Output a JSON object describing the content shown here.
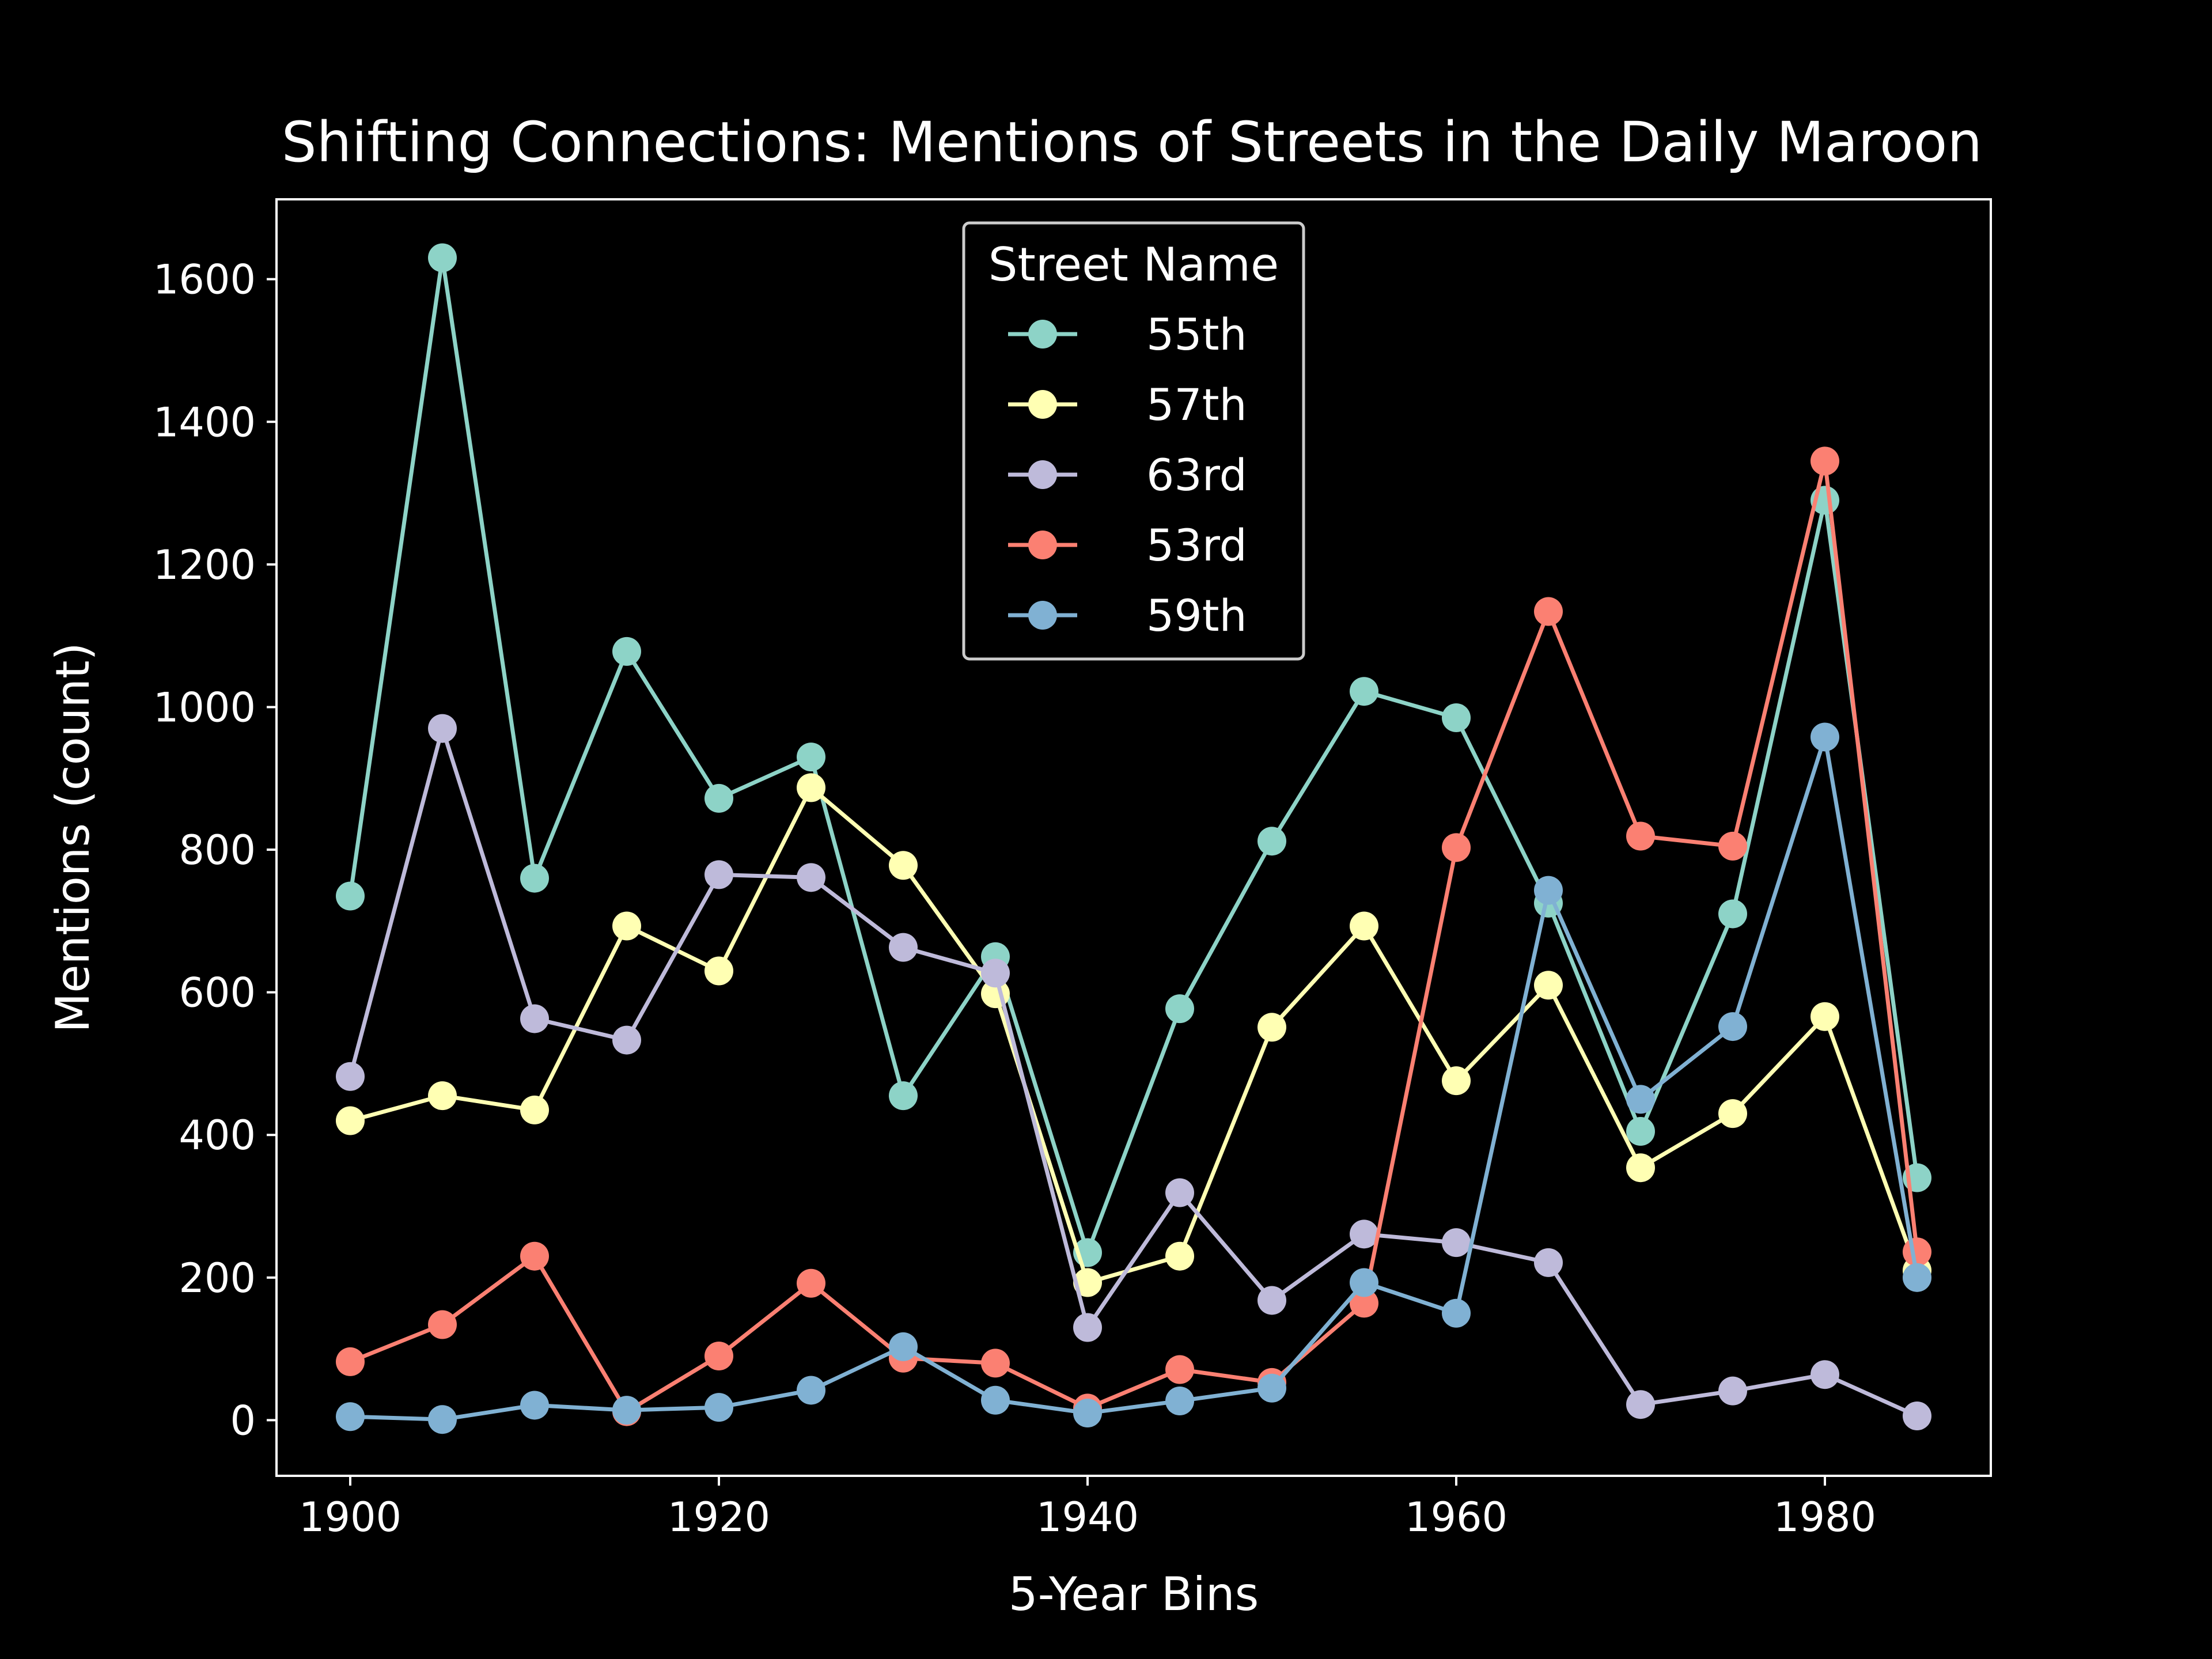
{
  "chart_data": {
    "type": "line",
    "title": "Shifting Connections: Mentions of Streets in the Daily Maroon",
    "xlabel": "5-Year Bins",
    "ylabel": "Mentions (count)",
    "xlim": [
      1896,
      1989
    ],
    "ylim": [
      -78,
      1712
    ],
    "xticks": [
      1900,
      1920,
      1940,
      1960,
      1980
    ],
    "yticks": [
      0,
      200,
      400,
      600,
      800,
      1000,
      1200,
      1400,
      1600
    ],
    "grid": false,
    "legend": {
      "title": "Street Name",
      "placement": "top-center"
    },
    "x": [
      1900,
      1905,
      1910,
      1915,
      1920,
      1925,
      1930,
      1935,
      1940,
      1945,
      1950,
      1955,
      1960,
      1965,
      1970,
      1975,
      1980,
      1985
    ],
    "series": [
      {
        "name": "55th",
        "color": "#8dd3c7",
        "values": [
          735,
          1630,
          760,
          1078,
          872,
          930,
          455,
          650,
          235,
          577,
          812,
          1022,
          985,
          725,
          405,
          710,
          1290,
          340
        ]
      },
      {
        "name": "57th",
        "color": "#ffffb3",
        "values": [
          420,
          455,
          435,
          693,
          630,
          887,
          778,
          598,
          193,
          230,
          551,
          693,
          476,
          610,
          354,
          430,
          566,
          210
        ]
      },
      {
        "name": "63rd",
        "color": "#bebada",
        "values": [
          482,
          970,
          563,
          533,
          765,
          761,
          663,
          627,
          130,
          319,
          168,
          261,
          249,
          221,
          22,
          41,
          64,
          6
        ]
      },
      {
        "name": "53rd",
        "color": "#fb8072",
        "values": [
          82,
          134,
          230,
          12,
          90,
          192,
          87,
          80,
          17,
          71,
          53,
          164,
          803,
          1134,
          819,
          805,
          1345,
          236
        ]
      },
      {
        "name": "59th",
        "color": "#80b1d3",
        "values": [
          5,
          1,
          21,
          14,
          18,
          42,
          103,
          28,
          10,
          27,
          45,
          193,
          150,
          743,
          450,
          552,
          958,
          200
        ]
      }
    ]
  }
}
